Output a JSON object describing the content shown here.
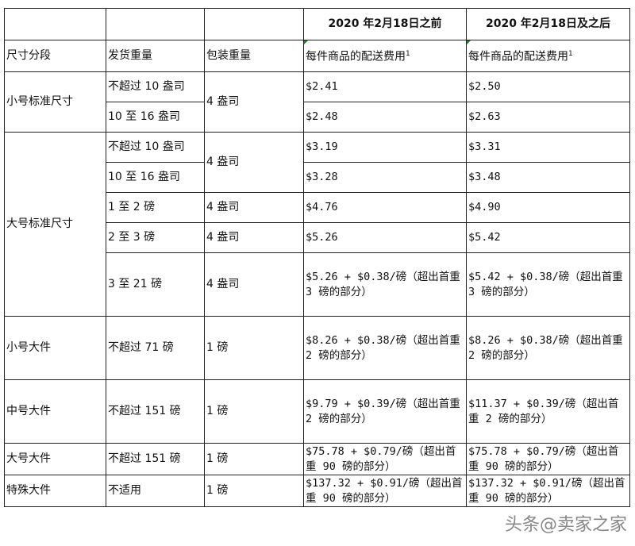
{
  "header": {
    "period_before": "2020 年2月18日之前",
    "period_after": "2020 年2月18日及之后"
  },
  "columns": {
    "size_tier": "尺寸分段",
    "shipping_weight": "发货重量",
    "packaging_weight": "包装重量",
    "fee_before": "每件商品的配送费用",
    "fee_after": "每件商品的配送费用",
    "footnote": "1"
  },
  "rows": [
    {
      "tier": "小号标准尺寸",
      "weight": "不超过 10 盎司",
      "pack": "4 盎司",
      "before": "$2.41",
      "after": "$2.50"
    },
    {
      "weight": "10 至 16 盎司",
      "before": "$2.48",
      "after": "$2.63"
    },
    {
      "tier": "大号标准尺寸",
      "weight": "不超过 10 盎司",
      "pack": "4 盎司",
      "before": "$3.19",
      "after": "$3.31"
    },
    {
      "weight": "10 至 16 盎司",
      "before": "$3.28",
      "after": "$3.48"
    },
    {
      "weight": "1 至 2 磅",
      "pack": "4 盎司",
      "before": "$4.76",
      "after": "$4.90"
    },
    {
      "weight": "2 至 3 磅",
      "pack": "4 盎司",
      "before": "$5.26",
      "after": "$5.42"
    },
    {
      "weight": "3 至 21 磅",
      "pack": "4 盎司",
      "before": "$5.26 + $0.38/磅（超出首重 3 磅的部分）",
      "after": "$5.42 + $0.38/磅（超出首重 3 磅的部分）"
    },
    {
      "tier": "小号大件",
      "weight": "不超过 71 磅",
      "pack": "1 磅",
      "before": "$8.26 + $0.38/磅（超出首重 2 磅的部分）",
      "after": "$8.26 + $0.38/磅（超出首重 2 磅的部分）"
    },
    {
      "tier": "中号大件",
      "weight": "不超过 151 磅",
      "pack": "1 磅",
      "before": "$9.79 + $0.39/磅（超出首重 2 磅的部分）",
      "after": "$11.37 + $0.39/磅（超出首重 2 磅的部分）"
    },
    {
      "tier": "大号大件",
      "weight": "不超过 151 磅",
      "pack": "1 磅",
      "before": "$75.78 + $0.79/磅（超出首重 90 磅的部分）",
      "after": "$75.78 + $0.79/磅（超出首重 90 磅的部分）"
    },
    {
      "tier": "特殊大件",
      "weight": "不适用",
      "pack": "1 磅",
      "before": "$137.32 + $0.91/磅（超出首重 90 磅的部分）",
      "after": "$137.32 + $0.91/磅（超出首重 90 磅的部分）"
    }
  ],
  "watermark": "头条@卖家之家"
}
